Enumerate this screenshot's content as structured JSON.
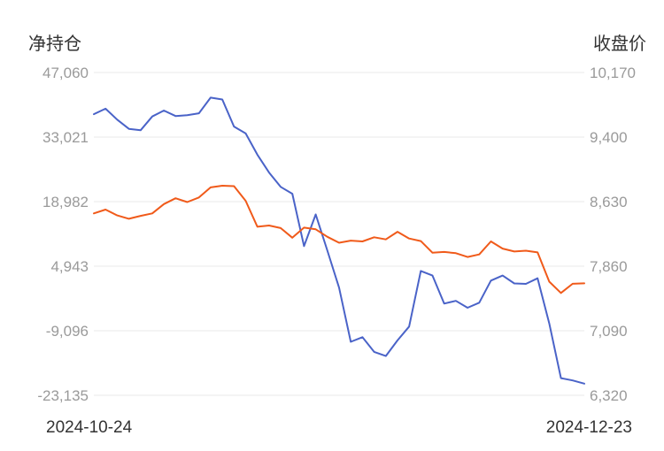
{
  "chart_data": {
    "type": "line",
    "ylabel_left": "净持仓",
    "ylabel_right": "收盘价",
    "x_start_label": "2024-10-24",
    "x_end_label": "2024-12-23",
    "y_left_ticks": [
      "47,060",
      "33,021",
      "18,982",
      "4,943",
      "-9,096",
      "-23,135"
    ],
    "y_right_ticks": [
      "10,170",
      "9,400",
      "8,630",
      "7,860",
      "7,090",
      "6,320"
    ],
    "ylim_left": [
      -23135,
      47060
    ],
    "ylim_right": [
      6320,
      10170
    ],
    "grid": true,
    "colors": {
      "net_position": "#4a63c8",
      "close": "#f05a1a",
      "grid": "#e8e8e8"
    },
    "series": [
      {
        "axis": "left",
        "color": "#4a63c8",
        "values": [
          38000,
          39200,
          36800,
          34800,
          34500,
          37500,
          38800,
          37600,
          37800,
          38200,
          41600,
          41200,
          35300,
          33800,
          29200,
          25300,
          22200,
          20700,
          9300,
          16200,
          8300,
          270,
          -11500,
          -10500,
          -13700,
          -14600,
          -11200,
          -8200,
          3900,
          2900,
          -3200,
          -2600,
          -4100,
          -3000,
          1800,
          2900,
          1200,
          1100,
          2300,
          -7500,
          -19400,
          -19900,
          -20600
        ]
      },
      {
        "axis": "right",
        "color": "#f05a1a",
        "values": [
          8490,
          8535,
          8465,
          8425,
          8460,
          8490,
          8600,
          8670,
          8625,
          8680,
          8800,
          8820,
          8815,
          8640,
          8330,
          8345,
          8315,
          8200,
          8320,
          8300,
          8210,
          8140,
          8165,
          8155,
          8205,
          8180,
          8270,
          8190,
          8160,
          8020,
          8030,
          8015,
          7970,
          8000,
          8155,
          8070,
          8035,
          8045,
          8025,
          7675,
          7540,
          7650,
          7655
        ]
      }
    ]
  }
}
